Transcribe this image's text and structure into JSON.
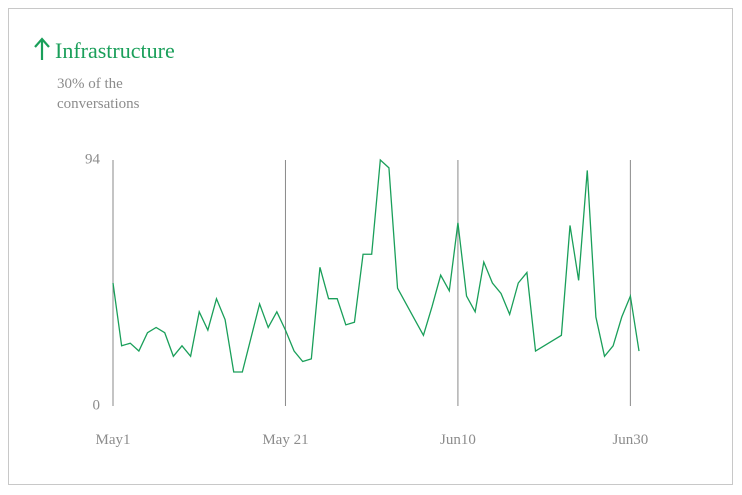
{
  "chart_data": {
    "type": "line",
    "title": "Infrastructure",
    "subtitle": "30% of the conversations",
    "x": [
      0,
      1,
      2,
      3,
      4,
      5,
      6,
      7,
      8,
      9,
      10,
      11,
      12,
      13,
      14,
      15,
      16,
      17,
      18,
      19,
      20,
      21,
      22,
      23,
      24,
      25,
      26,
      27,
      28,
      29,
      30,
      31,
      32,
      33,
      34,
      35,
      36,
      37,
      38,
      39,
      40,
      41,
      42,
      43,
      44,
      45,
      46,
      47,
      48,
      49,
      50,
      51,
      52,
      53,
      54,
      55,
      56,
      57,
      58,
      59,
      60,
      61
    ],
    "series": [
      {
        "name": "Infrastructure",
        "color": "#1a9f5a",
        "values": [
          47,
          23,
          24,
          21,
          28,
          30,
          28,
          19,
          23,
          19,
          36,
          29,
          41,
          33,
          13,
          13,
          26,
          39,
          30,
          36,
          29,
          21,
          17,
          18,
          53,
          41,
          41,
          31,
          32,
          58,
          58,
          94,
          91,
          45,
          39,
          33,
          27,
          38,
          50,
          44,
          70,
          42,
          36,
          55,
          47,
          43,
          35,
          47,
          51,
          21,
          23,
          25,
          27,
          69,
          48,
          90,
          34,
          19,
          23,
          34,
          42,
          21
        ]
      }
    ],
    "xlim": [
      0,
      61
    ],
    "xticks": [
      {
        "value": 0,
        "label": "May1"
      },
      {
        "value": 20,
        "label": "May 21"
      },
      {
        "value": 40,
        "label": "Jun10"
      },
      {
        "value": 60,
        "label": "Jun30"
      }
    ],
    "ylim": [
      0,
      94
    ],
    "yticks": [
      0,
      94
    ],
    "grid": "x"
  }
}
